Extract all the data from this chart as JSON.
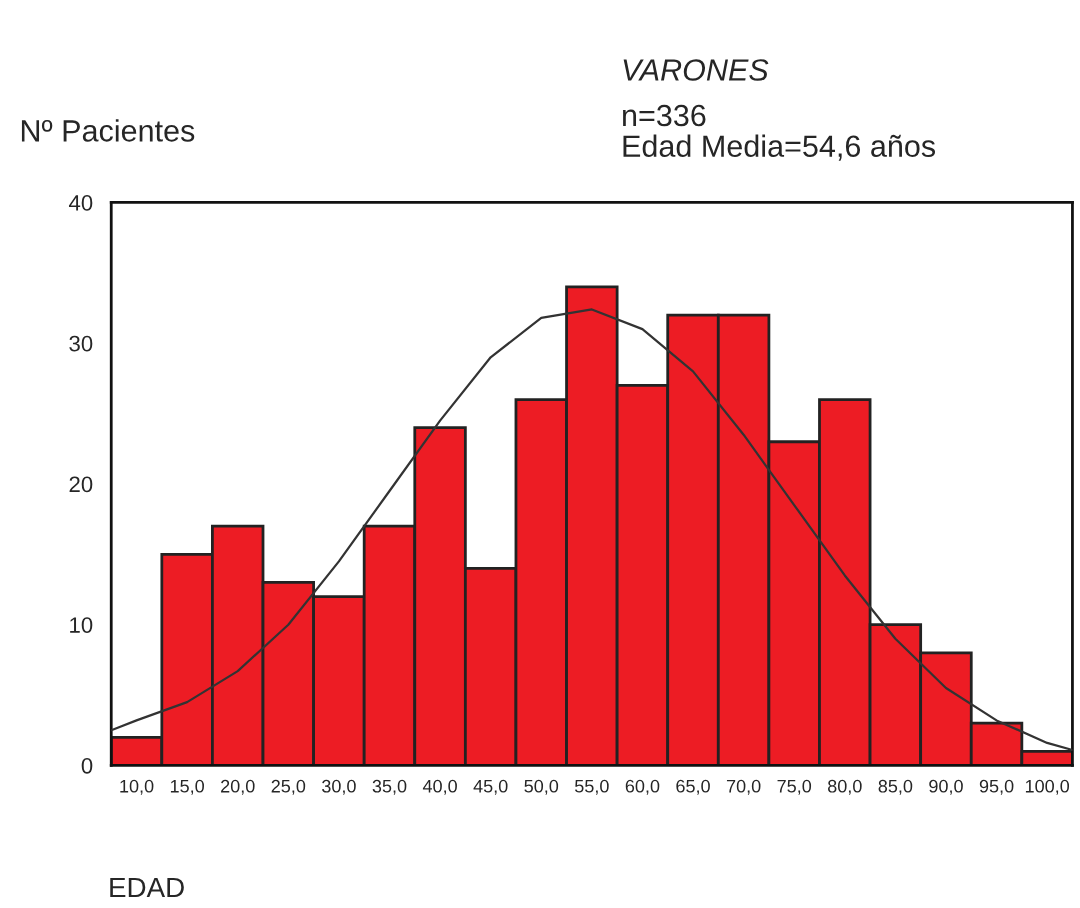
{
  "chart_data": {
    "type": "histogram",
    "title": "VARONES",
    "subtitle": "n=336\nEdad Media=54,6 años",
    "xlabel": "EDAD",
    "ylabel": "Nº Pacientes",
    "bins": [
      7.5,
      12.5,
      17.5,
      22.5,
      27.5,
      32.5,
      37.5,
      42.5,
      47.5,
      52.5,
      57.5,
      62.5,
      67.5,
      72.5,
      77.5,
      82.5,
      87.5,
      92.5,
      97.5,
      102.5
    ],
    "values": [
      2,
      15,
      17,
      13,
      12,
      17,
      24,
      14,
      26,
      34,
      27,
      32,
      32,
      23,
      26,
      10,
      8,
      3,
      1
    ],
    "color": "#ed1c24",
    "series": [
      {
        "type": "line",
        "color": "#333333",
        "x": [
          7.5,
          10,
          15,
          20,
          25,
          30,
          35,
          40,
          45,
          50,
          55,
          60,
          65,
          70,
          75,
          80,
          85,
          90,
          95,
          100,
          102.5
        ],
        "values": [
          2.5,
          3.2,
          4.5,
          6.7,
          10,
          14.5,
          19.5,
          24.5,
          29,
          31.8,
          32.4,
          31,
          28,
          23.5,
          18.5,
          13.5,
          9,
          5.5,
          3.2,
          1.6,
          1.1
        ]
      }
    ],
    "xlim": [
      7.5,
      102.5
    ],
    "xticks": [
      {
        "value": 10,
        "label": "10,0"
      },
      {
        "value": 15,
        "label": "15,0"
      },
      {
        "value": 20,
        "label": "20,0"
      },
      {
        "value": 25,
        "label": "25,0"
      },
      {
        "value": 30,
        "label": "30,0"
      },
      {
        "value": 35,
        "label": "35,0"
      },
      {
        "value": 40,
        "label": "40,0"
      },
      {
        "value": 45,
        "label": "45,0"
      },
      {
        "value": 50,
        "label": "50,0"
      },
      {
        "value": 55,
        "label": "55,0"
      },
      {
        "value": 60,
        "label": "60,0"
      },
      {
        "value": 65,
        "label": "65,0"
      },
      {
        "value": 70,
        "label": "70,0"
      },
      {
        "value": 75,
        "label": "75,0"
      },
      {
        "value": 80,
        "label": "80,0"
      },
      {
        "value": 85,
        "label": "85,0"
      },
      {
        "value": 90,
        "label": "90,0"
      },
      {
        "value": 95,
        "label": "95,0"
      },
      {
        "value": 100,
        "label": "100,0"
      }
    ],
    "ylim": [
      0,
      40
    ],
    "yticks": [
      0,
      10,
      20,
      30,
      40
    ],
    "grid": false,
    "legend": false
  }
}
